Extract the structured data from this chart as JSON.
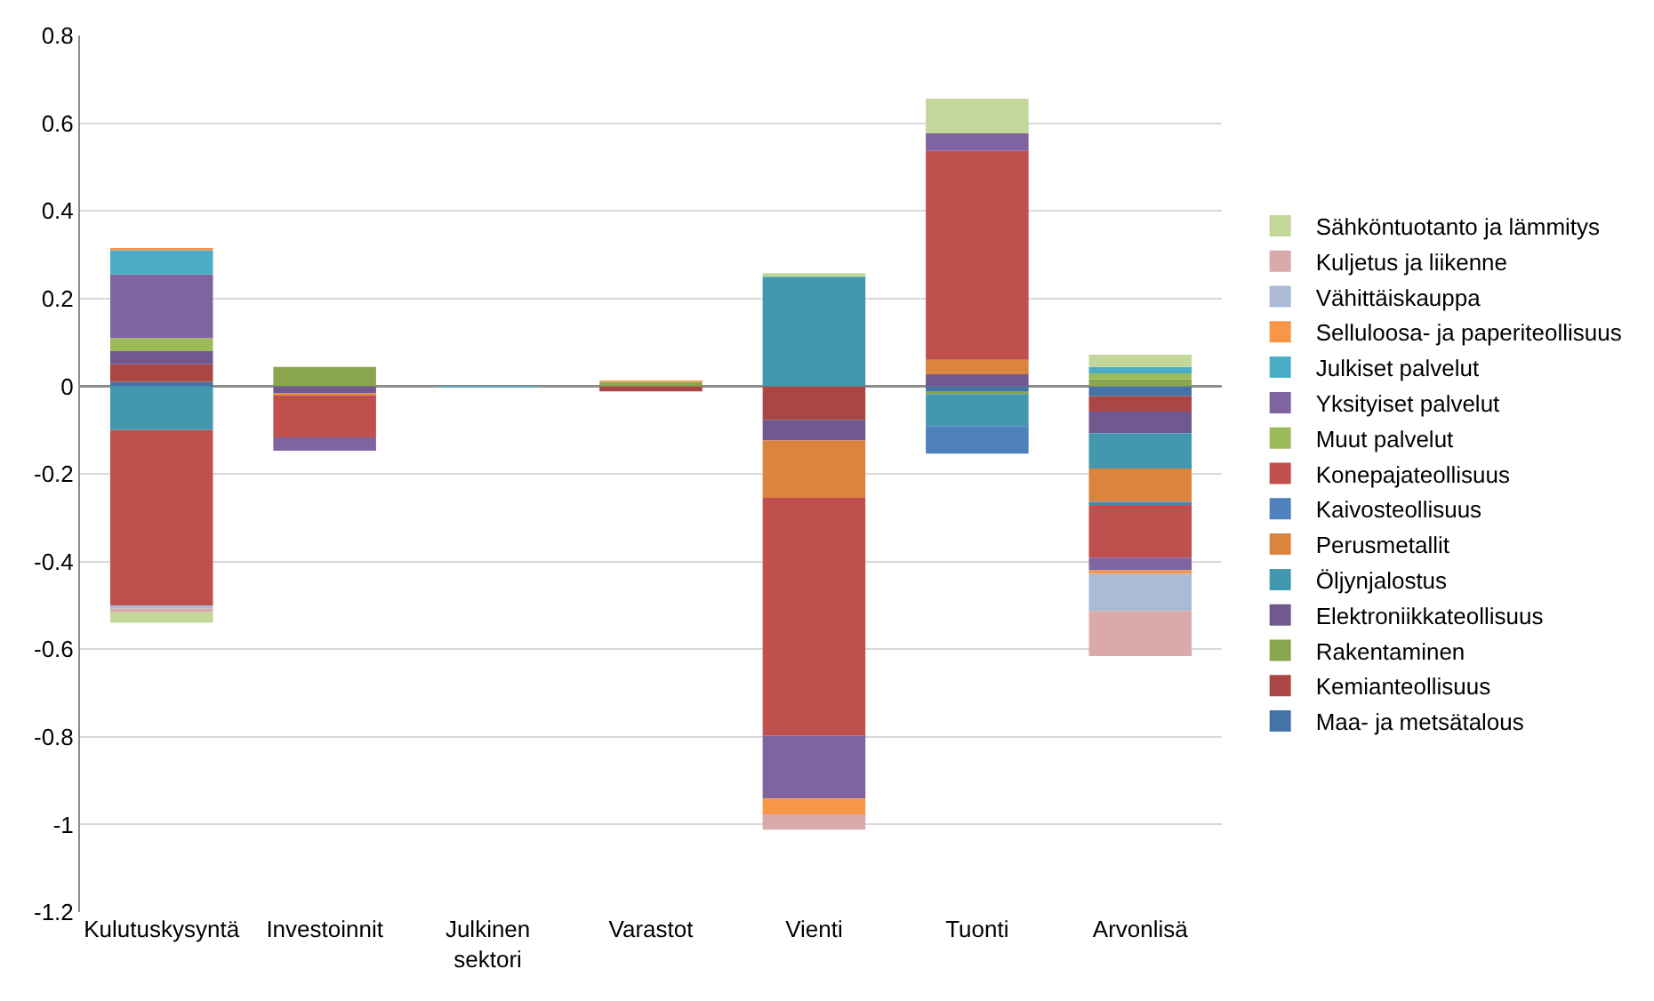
{
  "chart_data": {
    "type": "bar",
    "stacked": true,
    "categories": [
      "Kulutuskysyntä",
      "Investoinnit",
      "Julkinen sektori",
      "Varastot",
      "Vienti",
      "Tuonti",
      "Arvonlisä"
    ],
    "ylim": [
      -1.2,
      0.8
    ],
    "yticks": [
      -1.2,
      -1,
      -0.8,
      -0.6,
      -0.4,
      -0.2,
      0,
      0.2,
      0.4,
      0.6,
      0.8
    ],
    "grid": "y",
    "legend": "right",
    "series": [
      {
        "name": "Maa- ja metsätalous",
        "color": "#4572a7",
        "values": [
          0.01,
          null,
          null,
          null,
          null,
          -0.013,
          -0.023
        ]
      },
      {
        "name": "Kemianteollisuus",
        "color": "#aa4643",
        "values": [
          0.04,
          null,
          null,
          -0.012,
          -0.077,
          null,
          -0.035
        ]
      },
      {
        "name": "Rakentaminen",
        "color": "#89a54e",
        "values": [
          null,
          0.044,
          null,
          0.01,
          null,
          -0.005,
          0.016
        ]
      },
      {
        "name": "Elektroniikkateollisuus",
        "color": "#71588f",
        "values": [
          0.03,
          -0.016,
          null,
          null,
          -0.047,
          0.027,
          -0.049
        ]
      },
      {
        "name": "Öljynjalostus",
        "color": "#4198af",
        "values": [
          -0.1,
          null,
          null,
          null,
          0.25,
          -0.073,
          -0.081
        ]
      },
      {
        "name": "Perusmetallit",
        "color": "#db843d",
        "values": [
          null,
          -0.005,
          null,
          null,
          -0.131,
          0.033,
          -0.076
        ]
      },
      {
        "name": "Kaivosteollisuus",
        "color": "#4f81bd",
        "values": [
          null,
          null,
          null,
          null,
          null,
          -0.063,
          -0.007
        ]
      },
      {
        "name": "Konepajateollisuus",
        "color": "#c0504d",
        "values": [
          -0.4,
          -0.096,
          null,
          null,
          -0.543,
          0.477,
          -0.12
        ]
      },
      {
        "name": "Muut palvelut",
        "color": "#9bbb59",
        "values": [
          0.03,
          null,
          null,
          null,
          null,
          null,
          0.013
        ]
      },
      {
        "name": "Yksityiset palvelut",
        "color": "#8064a2",
        "values": [
          0.145,
          -0.03,
          null,
          null,
          -0.143,
          0.04,
          -0.029
        ]
      },
      {
        "name": "Julkiset palvelut",
        "color": "#4bacc6",
        "values": [
          0.055,
          null,
          -0.003,
          null,
          null,
          null,
          0.015
        ]
      },
      {
        "name": "Selluloosa- ja paperiteollisuus",
        "color": "#f79646",
        "values": [
          0.005,
          null,
          null,
          0.003,
          -0.036,
          null,
          -0.008
        ]
      },
      {
        "name": "Vähittäiskauppa",
        "color": "#aabad7",
        "values": [
          -0.008,
          null,
          null,
          null,
          null,
          null,
          -0.085
        ]
      },
      {
        "name": "Kuljetus ja liikenne",
        "color": "#d9aaa9",
        "values": [
          -0.008,
          null,
          null,
          null,
          -0.035,
          null,
          -0.103
        ]
      },
      {
        "name": "Sähköntuotanto ja lämmitys",
        "color": "#c4d79b",
        "values": [
          -0.024,
          null,
          null,
          null,
          0.008,
          0.079,
          0.028
        ]
      }
    ]
  }
}
